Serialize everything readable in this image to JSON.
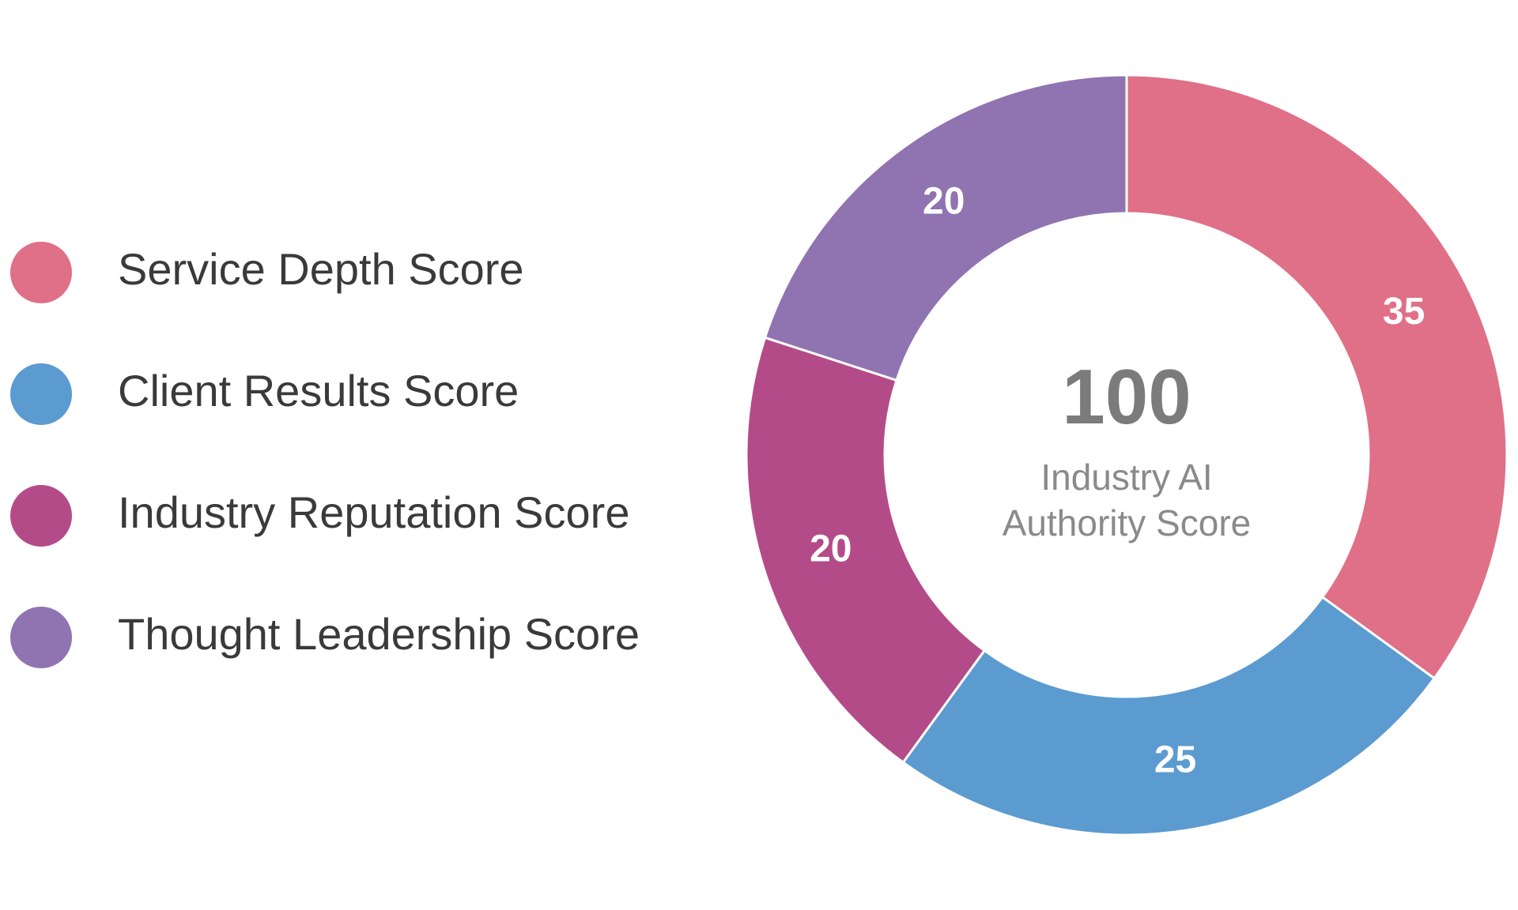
{
  "chart_data": {
    "type": "donut",
    "categories": [
      "Service Depth Score",
      "Client Results Score",
      "Industry Reputation Score",
      "Thought Leadership Score"
    ],
    "values": [
      35,
      25,
      20,
      20
    ],
    "colors": [
      "#df7087",
      "#5b9bd0",
      "#b44b89",
      "#9073b1"
    ],
    "center_value": 100,
    "center_label": "Industry AI Authority Score",
    "legend": "left"
  }
}
